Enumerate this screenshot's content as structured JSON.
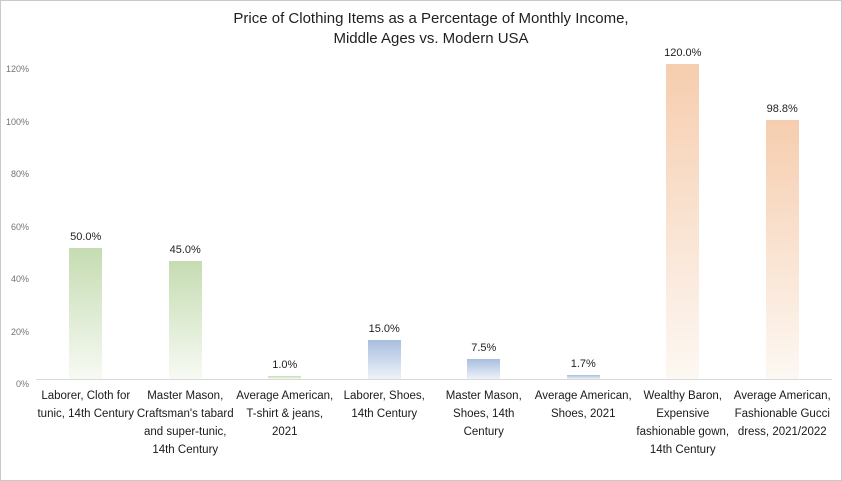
{
  "chart_data": {
    "type": "bar",
    "title_line1": "Price of Clothing Items as a Percentage of Monthly Income,",
    "title_line2": "Middle Ages vs. Modern USA",
    "xlabel": "",
    "ylabel": "",
    "ylim": [
      0,
      120
    ],
    "grid": false,
    "legend": false,
    "y_ticks": [
      {
        "label": "0%",
        "value": 0
      },
      {
        "label": "20%",
        "value": 20
      },
      {
        "label": "40%",
        "value": 40
      },
      {
        "label": "60%",
        "value": 60
      },
      {
        "label": "80%",
        "value": 80
      },
      {
        "label": "100%",
        "value": 100
      },
      {
        "label": "120%",
        "value": 120
      }
    ],
    "bars": [
      {
        "category": "Laborer, Cloth for tunic, 14th Century",
        "value": 50.0,
        "label": "50.0%",
        "color": "green"
      },
      {
        "category": "Master Mason, Craftsman's tabard and super-tunic, 14th Century",
        "value": 45.0,
        "label": "45.0%",
        "color": "green"
      },
      {
        "category": "Average American, T-shirt & jeans, 2021",
        "value": 1.0,
        "label": "1.0%",
        "color": "green"
      },
      {
        "category": "Laborer, Shoes, 14th Century",
        "value": 15.0,
        "label": "15.0%",
        "color": "blue"
      },
      {
        "category": "Master Mason, Shoes, 14th Century",
        "value": 7.5,
        "label": "7.5%",
        "color": "blue"
      },
      {
        "category": "Average American, Shoes, 2021",
        "value": 1.7,
        "label": "1.7%",
        "color": "blue"
      },
      {
        "category": "Wealthy Baron, Expensive fashionable gown, 14th Century",
        "value": 120.0,
        "label": "120.0%",
        "color": "orange"
      },
      {
        "category": "Average American, Fashionable Gucci dress, 2021/2022",
        "value": 98.8,
        "label": "98.8%",
        "color": "orange"
      }
    ],
    "palette": {
      "green": {
        "top": "#c5dcb2",
        "bottom": "#f7faf3"
      },
      "blue": {
        "top": "#a8bede",
        "bottom": "#eef2f9"
      },
      "orange": {
        "top": "#f6cdae",
        "bottom": "#fdf8f3"
      }
    },
    "axis_color": "#d9d9d9",
    "tick_label_color": "#737373",
    "data_label_color": "#1f1f1f",
    "category_label_color": "#1a1a1a"
  }
}
